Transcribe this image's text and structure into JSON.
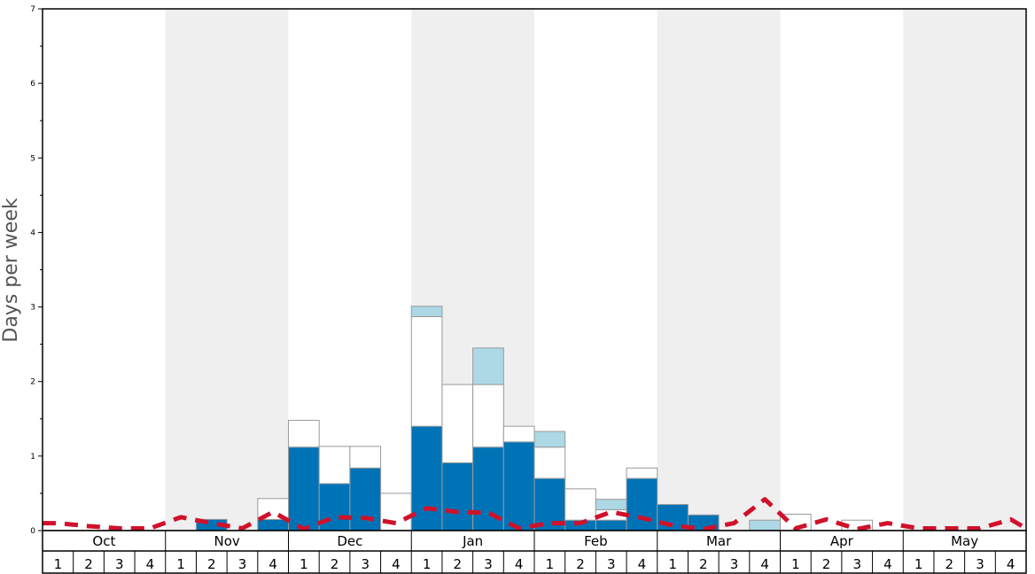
{
  "chart_data": {
    "type": "bar",
    "ylabel": "Days per week",
    "ylim": [
      0,
      7
    ],
    "yticks": [
      "0",
      "1",
      "2",
      "3",
      "4",
      "5",
      "6",
      "7"
    ],
    "months": [
      "Oct",
      "Nov",
      "Dec",
      "Jan",
      "Feb",
      "Mar",
      "Apr",
      "May"
    ],
    "weeks": [
      "1",
      "2",
      "3",
      "4"
    ],
    "colors": {
      "dark": "#0073b7",
      "white": "#fdfefd",
      "light": "#add8e6",
      "average_line": "#d0112b",
      "shade": "#efefef"
    },
    "series": [
      {
        "name": "",
        "values": [
          0,
          0,
          0,
          0,
          0,
          0.15,
          0,
          0.15,
          1.12,
          0.63,
          0.84,
          0,
          1.4,
          0.91,
          1.12,
          1.19,
          0.7,
          0.14,
          0.14,
          0.7,
          0.35,
          0.21,
          0,
          0,
          0,
          0,
          0,
          0,
          0,
          0,
          0,
          0
        ]
      },
      {
        "name": "",
        "values": [
          0,
          0,
          0,
          0,
          0,
          0,
          0,
          0.28,
          0.36,
          0.5,
          0.29,
          0.5,
          1.47,
          1.05,
          0.84,
          0.21,
          0.42,
          0.42,
          0.14,
          0.14,
          0,
          0,
          0,
          0,
          0.22,
          0,
          0.14,
          0,
          0,
          0,
          0,
          0
        ]
      },
      {
        "name": "",
        "values": [
          0,
          0,
          0,
          0,
          0,
          0,
          0,
          0,
          0,
          0,
          0,
          0,
          0.14,
          0,
          0.49,
          0,
          0.21,
          0,
          0.14,
          0,
          0,
          0,
          0,
          0.14,
          0,
          0,
          0,
          0,
          0,
          0,
          0,
          0
        ]
      }
    ],
    "average": [
      0.1,
      0.06,
      0.03,
      0.03,
      0.18,
      0.1,
      0.03,
      0.25,
      0.02,
      0.18,
      0.17,
      0.1,
      0.3,
      0.25,
      0.24,
      0.03,
      0.1,
      0.1,
      0.25,
      0.17,
      0.07,
      0.02,
      0.1,
      0.42,
      0.03,
      0.15,
      0.02,
      0.1,
      0.03,
      0.03,
      0.03,
      0.15
    ]
  }
}
